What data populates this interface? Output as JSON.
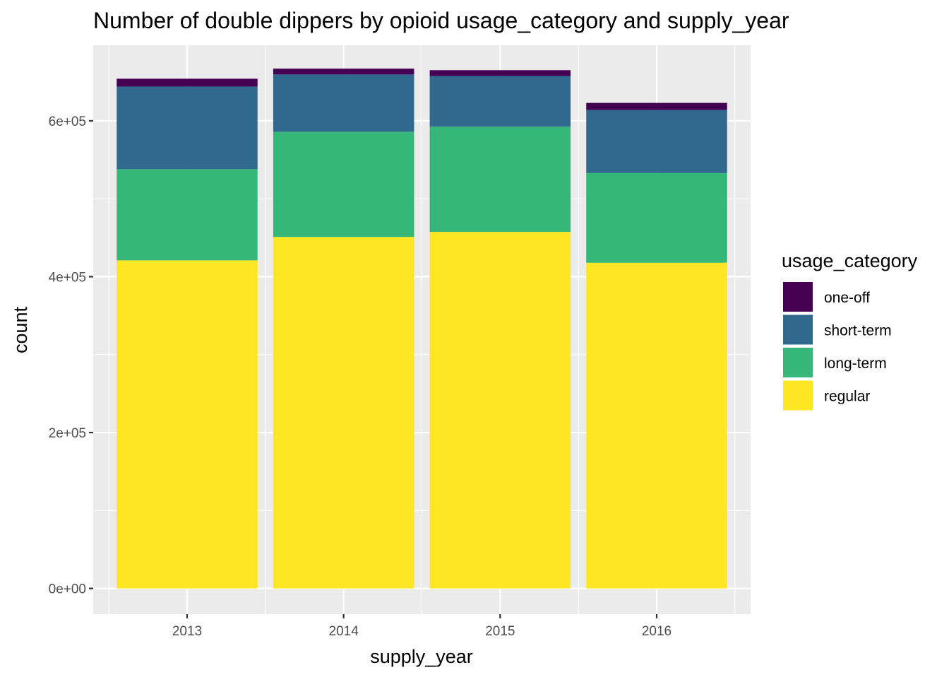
{
  "chart_data": {
    "type": "bar",
    "stacked": true,
    "title": "Number of double dippers by opioid usage_category and supply_year",
    "xlabel": "supply_year",
    "ylabel": "count",
    "categories": [
      "2013",
      "2014",
      "2015",
      "2016"
    ],
    "series": [
      {
        "name": "regular",
        "color": "#FDE725",
        "values": [
          421000,
          451000,
          457500,
          418000
        ]
      },
      {
        "name": "long-term",
        "color": "#35B779",
        "values": [
          117000,
          135000,
          135000,
          115000
        ]
      },
      {
        "name": "short-term",
        "color": "#31688E",
        "values": [
          106000,
          73500,
          65000,
          81000
        ]
      },
      {
        "name": "one-off",
        "color": "#440154",
        "values": [
          10000,
          7500,
          7500,
          9000
        ]
      }
    ],
    "ylim": [
      -33000,
      697000
    ],
    "yticks": [
      0,
      200000,
      400000,
      600000
    ],
    "ytick_labels": [
      "0e+00",
      "2e+05",
      "4e+05",
      "6e+05"
    ],
    "grid": true,
    "legend": {
      "title": "usage_category",
      "position": "right",
      "order": [
        "one-off",
        "short-term",
        "long-term",
        "regular"
      ]
    },
    "colors": {
      "panel_background": "#EBEBEB",
      "grid": "#FFFFFF",
      "axis_text": "#4D4D4D",
      "text": "#000000"
    }
  }
}
